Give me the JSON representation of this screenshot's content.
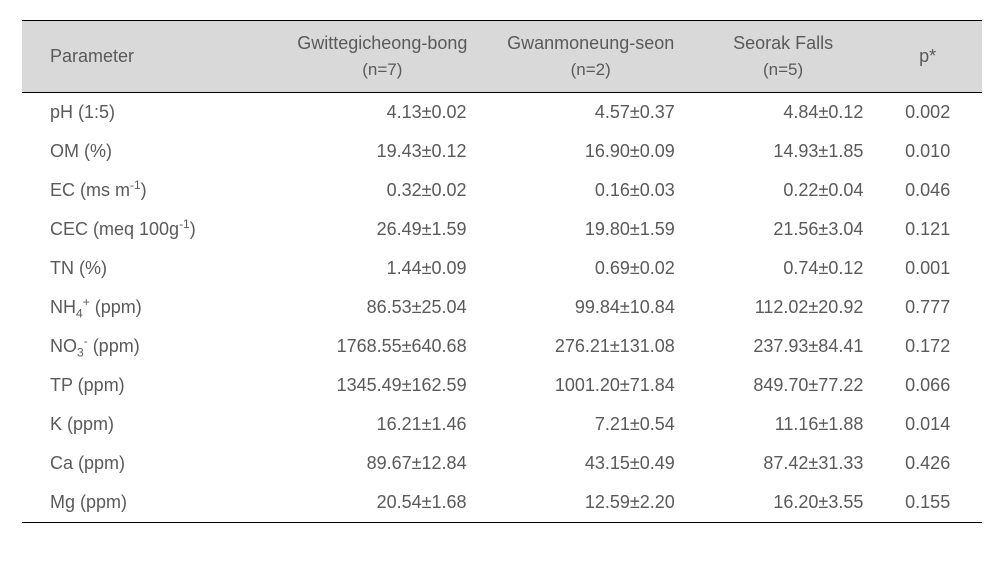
{
  "table": {
    "background_header": "#d9d9d9",
    "text_color": "#5a5a5a",
    "border_color": "#000000",
    "font_size_header": 18,
    "font_size_body": 18,
    "columns": [
      {
        "label": "Parameter",
        "sub": ""
      },
      {
        "label": "Gwittegicheong-bong",
        "sub": "(n=7)"
      },
      {
        "label": "Gwanmoneung-seon",
        "sub": "(n=2)"
      },
      {
        "label": "Seorak Falls",
        "sub": "(n=5)"
      },
      {
        "label": "p*",
        "sub": ""
      }
    ],
    "rows": [
      {
        "param_html": "pH (1:5)",
        "gwit": "4.13±0.02",
        "gwan": "4.57±0.37",
        "seorak": "4.84±0.12",
        "p": "0.002"
      },
      {
        "param_html": "OM (%)",
        "gwit": "19.43±0.12",
        "gwan": "16.90±0.09",
        "seorak": "14.93±1.85",
        "p": "0.010"
      },
      {
        "param_html": "EC (ms m<sup>-1</sup>)",
        "gwit": "0.32±0.02",
        "gwan": "0.16±0.03",
        "seorak": "0.22±0.04",
        "p": "0.046"
      },
      {
        "param_html": "CEC (meq 100g<sup>-1</sup>)",
        "gwit": "26.49±1.59",
        "gwan": "19.80±1.59",
        "seorak": "21.56±3.04",
        "p": "0.121"
      },
      {
        "param_html": "TN (%)",
        "gwit": "1.44±0.09",
        "gwan": "0.69±0.02",
        "seorak": "0.74±0.12",
        "p": "0.001"
      },
      {
        "param_html": "NH<sub>4</sub><sup>+</sup> (ppm)",
        "gwit": "86.53±25.04",
        "gwan": "99.84±10.84",
        "seorak": "112.02±20.92",
        "p": "0.777"
      },
      {
        "param_html": "NO<sub>3</sub><sup>-</sup> (ppm)",
        "gwit": "1768.55±640.68",
        "gwan": "276.21±131.08",
        "seorak": "237.93±84.41",
        "p": "0.172"
      },
      {
        "param_html": "TP (ppm)",
        "gwit": "1345.49±162.59",
        "gwan": "1001.20±71.84",
        "seorak": "849.70±77.22",
        "p": "0.066"
      },
      {
        "param_html": "K (ppm)",
        "gwit": "16.21±1.46",
        "gwan": "7.21±0.54",
        "seorak": "11.16±1.88",
        "p": "0.014"
      },
      {
        "param_html": "Ca (ppm)",
        "gwit": "89.67±12.84",
        "gwan": "43.15±0.49",
        "seorak": "87.42±31.33",
        "p": "0.426"
      },
      {
        "param_html": "Mg (ppm)",
        "gwit": "20.54±1.68",
        "gwan": "12.59±2.20",
        "seorak": "16.20±3.55",
        "p": "0.155"
      }
    ]
  }
}
